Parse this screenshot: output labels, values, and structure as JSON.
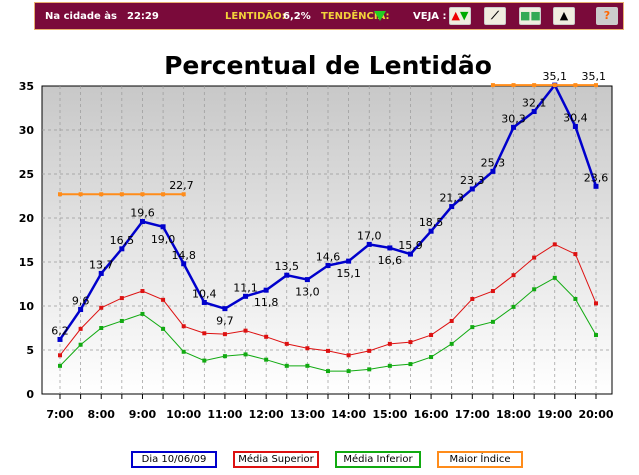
{
  "header": {
    "city_label": "Na cidade às",
    "time": "22:29",
    "slowness_label": "LENTIDÃO:",
    "slowness_value": "6,2%",
    "trend_label": "TENDÊNCIA:",
    "see_label": "VEJA :",
    "help": "?"
  },
  "colors": {
    "day": "#0000cc",
    "upper": "#dd1111",
    "lower": "#11aa11",
    "max": "#ff8c1a",
    "header_bg": "#7a0a3a"
  },
  "chart_data": {
    "type": "line",
    "title": "Percentual de Lentidão",
    "ylim": [
      0,
      35
    ],
    "yticks": [
      0,
      5,
      10,
      15,
      20,
      25,
      30,
      35
    ],
    "xtick_labels": [
      "7:00",
      "8:00",
      "9:00",
      "10:00",
      "11:00",
      "12:00",
      "13:00",
      "14:00",
      "15:00",
      "16:00",
      "17:00",
      "18:00",
      "19:00",
      "20:00"
    ],
    "x": [
      "7:00",
      "7:30",
      "8:00",
      "8:30",
      "9:00",
      "9:30",
      "10:00",
      "10:30",
      "11:00",
      "11:30",
      "12:00",
      "12:30",
      "13:00",
      "13:30",
      "14:00",
      "14:30",
      "15:00",
      "15:30",
      "16:00",
      "16:30",
      "17:00",
      "17:30",
      "18:00",
      "18:30",
      "19:00",
      "19:30",
      "20:00"
    ],
    "series": [
      {
        "name": "Dia 10/06/09",
        "key": "day",
        "labels": true,
        "values": [
          6.2,
          9.6,
          13.7,
          16.5,
          19.6,
          19.0,
          14.8,
          10.4,
          9.7,
          11.1,
          11.8,
          13.5,
          13.0,
          14.6,
          15.1,
          17.0,
          16.6,
          15.9,
          18.5,
          21.3,
          23.3,
          25.3,
          30.3,
          32.1,
          35.1,
          30.4,
          23.6
        ]
      },
      {
        "name": "Média Superior",
        "key": "upper",
        "values": [
          4.4,
          7.4,
          9.8,
          10.9,
          11.7,
          10.7,
          7.7,
          6.9,
          6.8,
          7.2,
          6.5,
          5.7,
          5.2,
          4.9,
          4.4,
          4.9,
          5.7,
          5.9,
          6.7,
          8.3,
          10.8,
          11.7,
          13.5,
          15.5,
          17.0,
          15.9,
          10.3
        ]
      },
      {
        "name": "Média Inferior",
        "key": "lower",
        "values": [
          3.2,
          5.6,
          7.5,
          8.3,
          9.1,
          7.4,
          4.8,
          3.8,
          4.3,
          4.5,
          3.9,
          3.2,
          3.2,
          2.6,
          2.6,
          2.8,
          3.2,
          3.4,
          4.2,
          5.7,
          7.6,
          8.2,
          9.9,
          11.9,
          13.2,
          10.8,
          6.7
        ]
      },
      {
        "name": "Maior Índice",
        "key": "max",
        "segments": [
          {
            "from": 0,
            "to": 6,
            "value": 22.7,
            "label": "22,7"
          },
          {
            "from": 21,
            "to": 26,
            "value": 35.1,
            "label": "35,1"
          }
        ]
      }
    ],
    "legend": "bottom"
  }
}
